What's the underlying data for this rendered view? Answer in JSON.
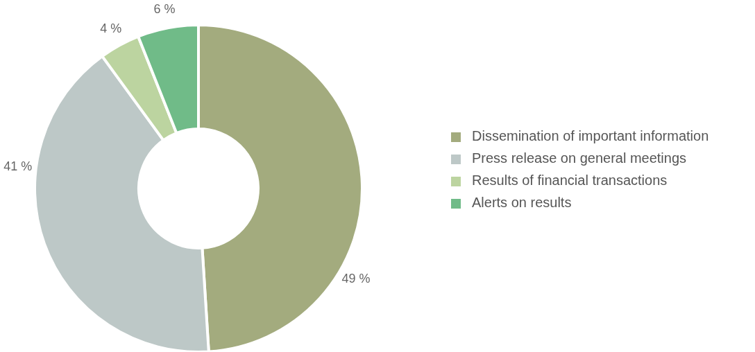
{
  "chart_data": {
    "type": "donut",
    "categories": [
      "Dissemination of important information",
      "Press release on general meetings",
      "Results of financial transactions",
      "Alerts on results"
    ],
    "values": [
      49,
      41,
      4,
      6
    ],
    "colors": [
      "#a3ab7e",
      "#bdc8c7",
      "#bcd4a0",
      "#70bb88"
    ],
    "value_labels": [
      "49 %",
      "41 %",
      "4 %",
      "6 %"
    ],
    "legend": "right"
  }
}
